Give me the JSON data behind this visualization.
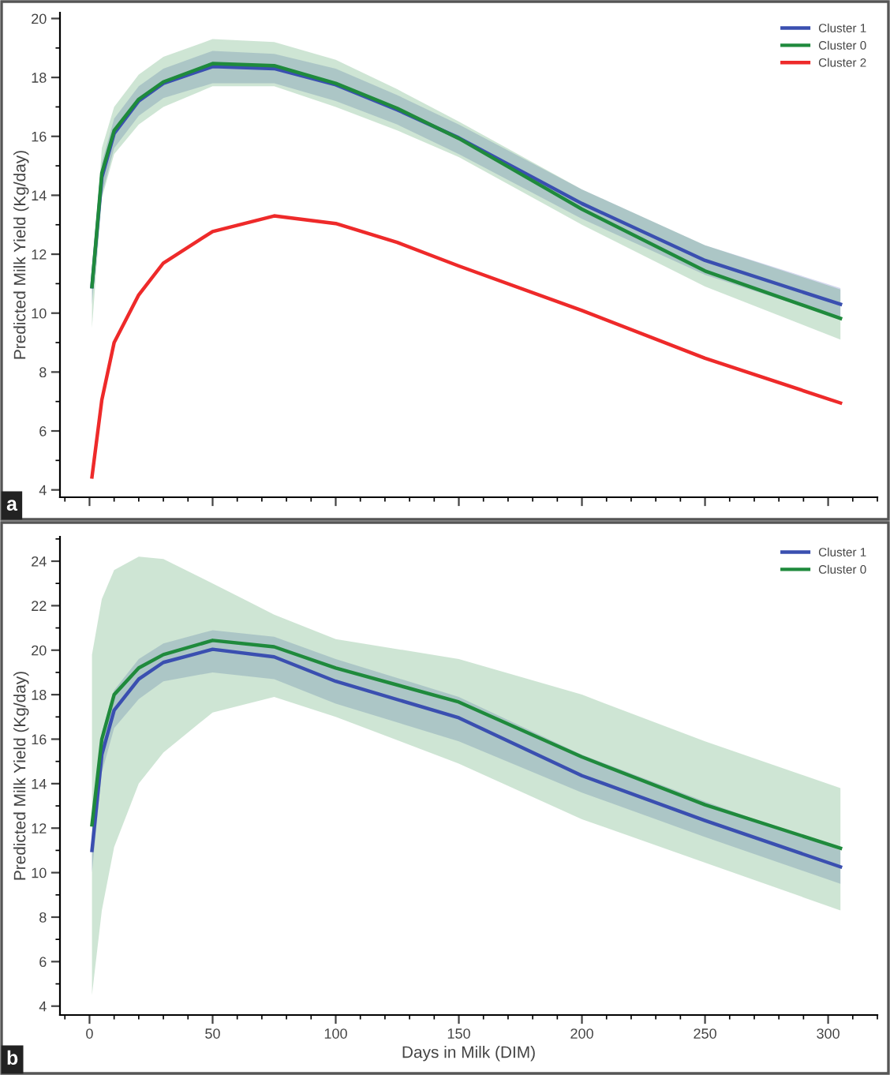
{
  "chart_data": [
    {
      "type": "line",
      "ylabel": "Predicted Milk Yield (Kg/day)",
      "xlim": [
        -12,
        320
      ],
      "xticks": [
        0,
        50,
        100,
        150,
        200,
        250,
        300
      ],
      "ylim": [
        3.75,
        20.2
      ],
      "yticks": [
        4,
        6,
        8,
        10,
        12,
        14,
        16,
        18,
        20
      ],
      "tick_labels": "y",
      "grid": false,
      "legend": "top right",
      "annotations": [
        "a"
      ],
      "x": [
        1,
        5,
        10,
        20,
        30,
        50,
        75,
        100,
        125,
        150,
        200,
        250,
        305
      ],
      "series": [
        {
          "name": "Cluster 1",
          "color": "#3a4fb0",
          "values": [
            10.9,
            14.6,
            16.1,
            17.2,
            17.8,
            18.37,
            18.3,
            17.75,
            16.9,
            15.95,
            13.72,
            11.79,
            10.3
          ],
          "lower": [
            10.3,
            14.0,
            15.6,
            16.7,
            17.3,
            17.8,
            17.8,
            17.2,
            16.4,
            15.4,
            13.2,
            11.3,
            9.8
          ],
          "upper": [
            11.2,
            15.1,
            16.6,
            17.7,
            18.3,
            18.9,
            18.8,
            18.3,
            17.4,
            16.4,
            14.2,
            12.3,
            10.85
          ]
        },
        {
          "name": "Cluster 0",
          "color": "#1f8a3c",
          "values": [
            10.9,
            14.75,
            16.2,
            17.26,
            17.85,
            18.47,
            18.4,
            17.8,
            16.95,
            15.93,
            13.53,
            11.43,
            9.82
          ],
          "lower": [
            9.5,
            13.9,
            15.4,
            16.4,
            17.0,
            17.7,
            17.7,
            17.0,
            16.2,
            15.3,
            13.0,
            10.9,
            9.1
          ],
          "upper": [
            10.9,
            15.6,
            17.0,
            18.1,
            18.7,
            19.3,
            19.2,
            18.6,
            17.6,
            16.5,
            14.2,
            12.3,
            10.8
          ]
        },
        {
          "name": "Cluster 2",
          "color": "#ee2a2a",
          "values": [
            4.44,
            7.05,
            9.0,
            10.62,
            11.7,
            12.77,
            13.3,
            13.04,
            12.4,
            11.6,
            10.09,
            8.47,
            6.95
          ]
        }
      ]
    },
    {
      "type": "line",
      "xlabel": "Days in Milk (DIM)",
      "ylabel": "Predicted Milk Yield (Kg/day)",
      "xlim": [
        -12,
        320
      ],
      "xticks": [
        0,
        50,
        100,
        150,
        200,
        250,
        300
      ],
      "ylim": [
        3.6,
        25.1
      ],
      "yticks": [
        4,
        6,
        8,
        10,
        12,
        14,
        16,
        18,
        20,
        22,
        24
      ],
      "grid": false,
      "legend": "top right",
      "annotations": [
        "b"
      ],
      "x": [
        1,
        5,
        10,
        20,
        30,
        50,
        75,
        100,
        150,
        200,
        250,
        305
      ],
      "series": [
        {
          "name": "Cluster 1",
          "color": "#3a4fb0",
          "values": [
            11.0,
            15.3,
            17.3,
            18.7,
            19.45,
            20.04,
            19.7,
            18.6,
            16.96,
            14.36,
            12.34,
            10.26
          ],
          "lower": [
            10.0,
            14.5,
            16.5,
            17.8,
            18.6,
            19.0,
            18.7,
            17.6,
            15.9,
            13.6,
            11.6,
            9.5
          ],
          "upper": [
            11.7,
            16.3,
            18.2,
            19.6,
            20.3,
            20.9,
            20.6,
            19.6,
            17.9,
            15.3,
            13.2,
            11.0
          ]
        },
        {
          "name": "Cluster 0",
          "color": "#1f8a3c",
          "values": [
            12.15,
            16.0,
            18.0,
            19.2,
            19.8,
            20.44,
            20.15,
            19.2,
            17.67,
            15.2,
            13.05,
            11.1
          ],
          "lower": [
            4.5,
            8.3,
            11.15,
            14.0,
            15.4,
            17.2,
            17.9,
            17.0,
            14.9,
            12.4,
            10.45,
            8.3
          ],
          "upper": [
            19.8,
            22.3,
            23.6,
            24.2,
            24.1,
            23.0,
            21.6,
            20.5,
            19.6,
            18.0,
            15.9,
            13.8
          ]
        }
      ]
    }
  ]
}
